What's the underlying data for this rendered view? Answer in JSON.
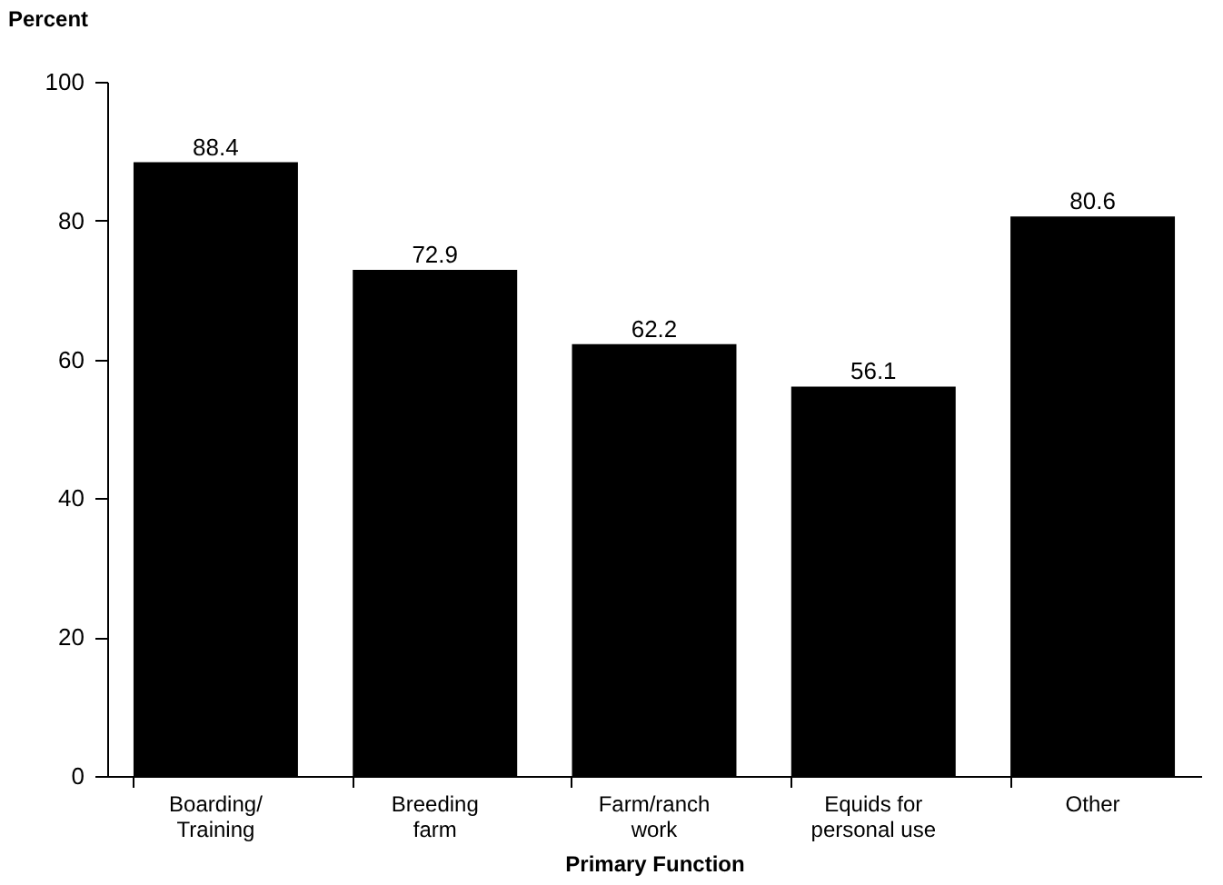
{
  "chart_data": {
    "type": "bar",
    "xlabel": "Primary Function",
    "ylabel": "Percent",
    "categories": [
      "Boarding/\nTraining",
      "Breeding\nfarm",
      "Farm/ranch\nwork",
      "Equids for\npersonal use",
      "Other"
    ],
    "values": [
      88.4,
      72.9,
      62.2,
      56.1,
      80.6
    ],
    "color": "#000000",
    "ylim": [
      0,
      100
    ],
    "yticks": [
      0,
      20,
      40,
      60,
      80,
      100
    ],
    "grid": false,
    "data_labels": true
  }
}
